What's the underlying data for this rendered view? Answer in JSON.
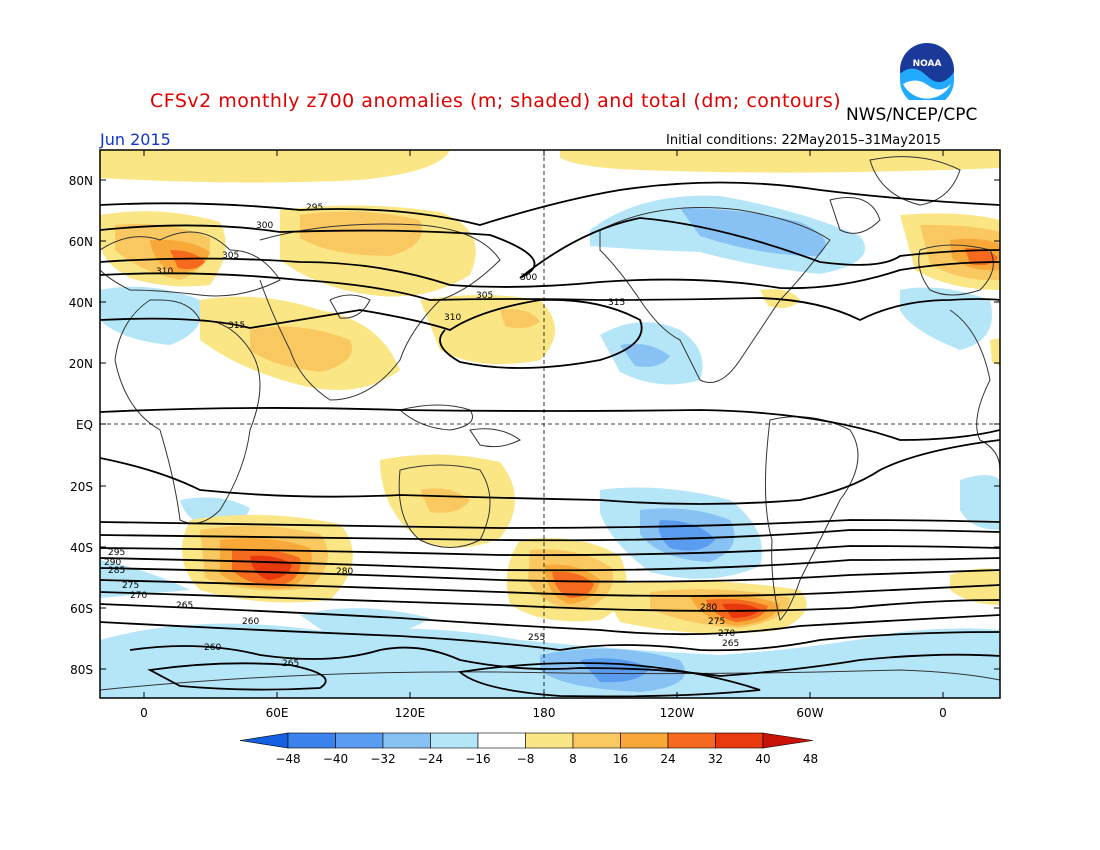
{
  "header": {
    "title": "CFSv2 monthly z700 anomalies (m; shaded) and total (dm; contours)",
    "organization": "NWS/NCEP/CPC",
    "month": "Jun 2015",
    "initial_conditions": "Initial conditions: 22May2015–31May2015",
    "logo_text": "NOAA"
  },
  "map": {
    "lat_labels": [
      "80N",
      "60N",
      "40N",
      "20N",
      "EQ",
      "20S",
      "40S",
      "60S",
      "80S"
    ],
    "lon_labels": [
      "0",
      "60E",
      "120E",
      "180",
      "120W",
      "60W",
      "0"
    ],
    "colorbar": {
      "levels": [
        "-48",
        "-40",
        "-32",
        "-24",
        "-16",
        "-8",
        "8",
        "16",
        "24",
        "32",
        "40",
        "48"
      ],
      "colors": [
        "#1560e0",
        "#3c82ec",
        "#5a9cf0",
        "#88c2f4",
        "#b4e6f8",
        "#ffffff",
        "#fbe686",
        "#fac860",
        "#f8a838",
        "#f56a1e",
        "#e8380e",
        "#c81208"
      ]
    },
    "contour_labels": [
      "295",
      "300",
      "305",
      "310",
      "315",
      "315",
      "310",
      "305",
      "300",
      "295",
      "290",
      "285",
      "280",
      "275",
      "270",
      "265",
      "260",
      "255",
      "260",
      "265",
      "280",
      "275",
      "270",
      "265"
    ],
    "colors": {
      "land_line": "#333333",
      "contour": "#000000"
    }
  }
}
